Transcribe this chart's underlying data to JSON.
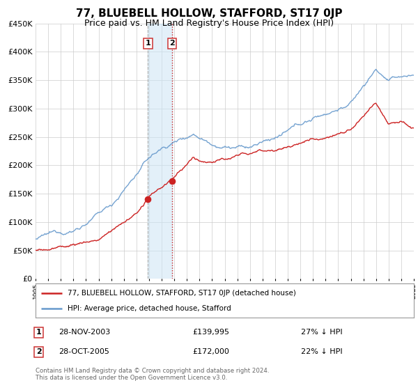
{
  "title": "77, BLUEBELL HOLLOW, STAFFORD, ST17 0JP",
  "subtitle": "Price paid vs. HM Land Registry's House Price Index (HPI)",
  "title_fontsize": 11,
  "subtitle_fontsize": 9,
  "background_color": "#ffffff",
  "grid_color": "#cccccc",
  "hpi_color": "#6699cc",
  "price_color": "#cc2222",
  "ylim": [
    0,
    450000
  ],
  "yticks": [
    0,
    50000,
    100000,
    150000,
    200000,
    250000,
    300000,
    350000,
    400000,
    450000
  ],
  "legend_entry1": "77, BLUEBELL HOLLOW, STAFFORD, ST17 0JP (detached house)",
  "legend_entry2": "HPI: Average price, detached house, Stafford",
  "sale1_date": "28-NOV-2003",
  "sale1_price": 139995,
  "sale1_pct": "27% ↓ HPI",
  "sale2_date": "28-OCT-2005",
  "sale2_price": 172000,
  "sale2_pct": "22% ↓ HPI",
  "footnote": "Contains HM Land Registry data © Crown copyright and database right 2024.\nThis data is licensed under the Open Government Licence v3.0.",
  "sale1_year": 2003.91,
  "sale2_year": 2005.83,
  "vline1_year": 2003.91,
  "vline2_year": 2005.83,
  "shade_start": 2003.91,
  "shade_end": 2005.83,
  "xlim_start": 1995,
  "xlim_end": 2025
}
